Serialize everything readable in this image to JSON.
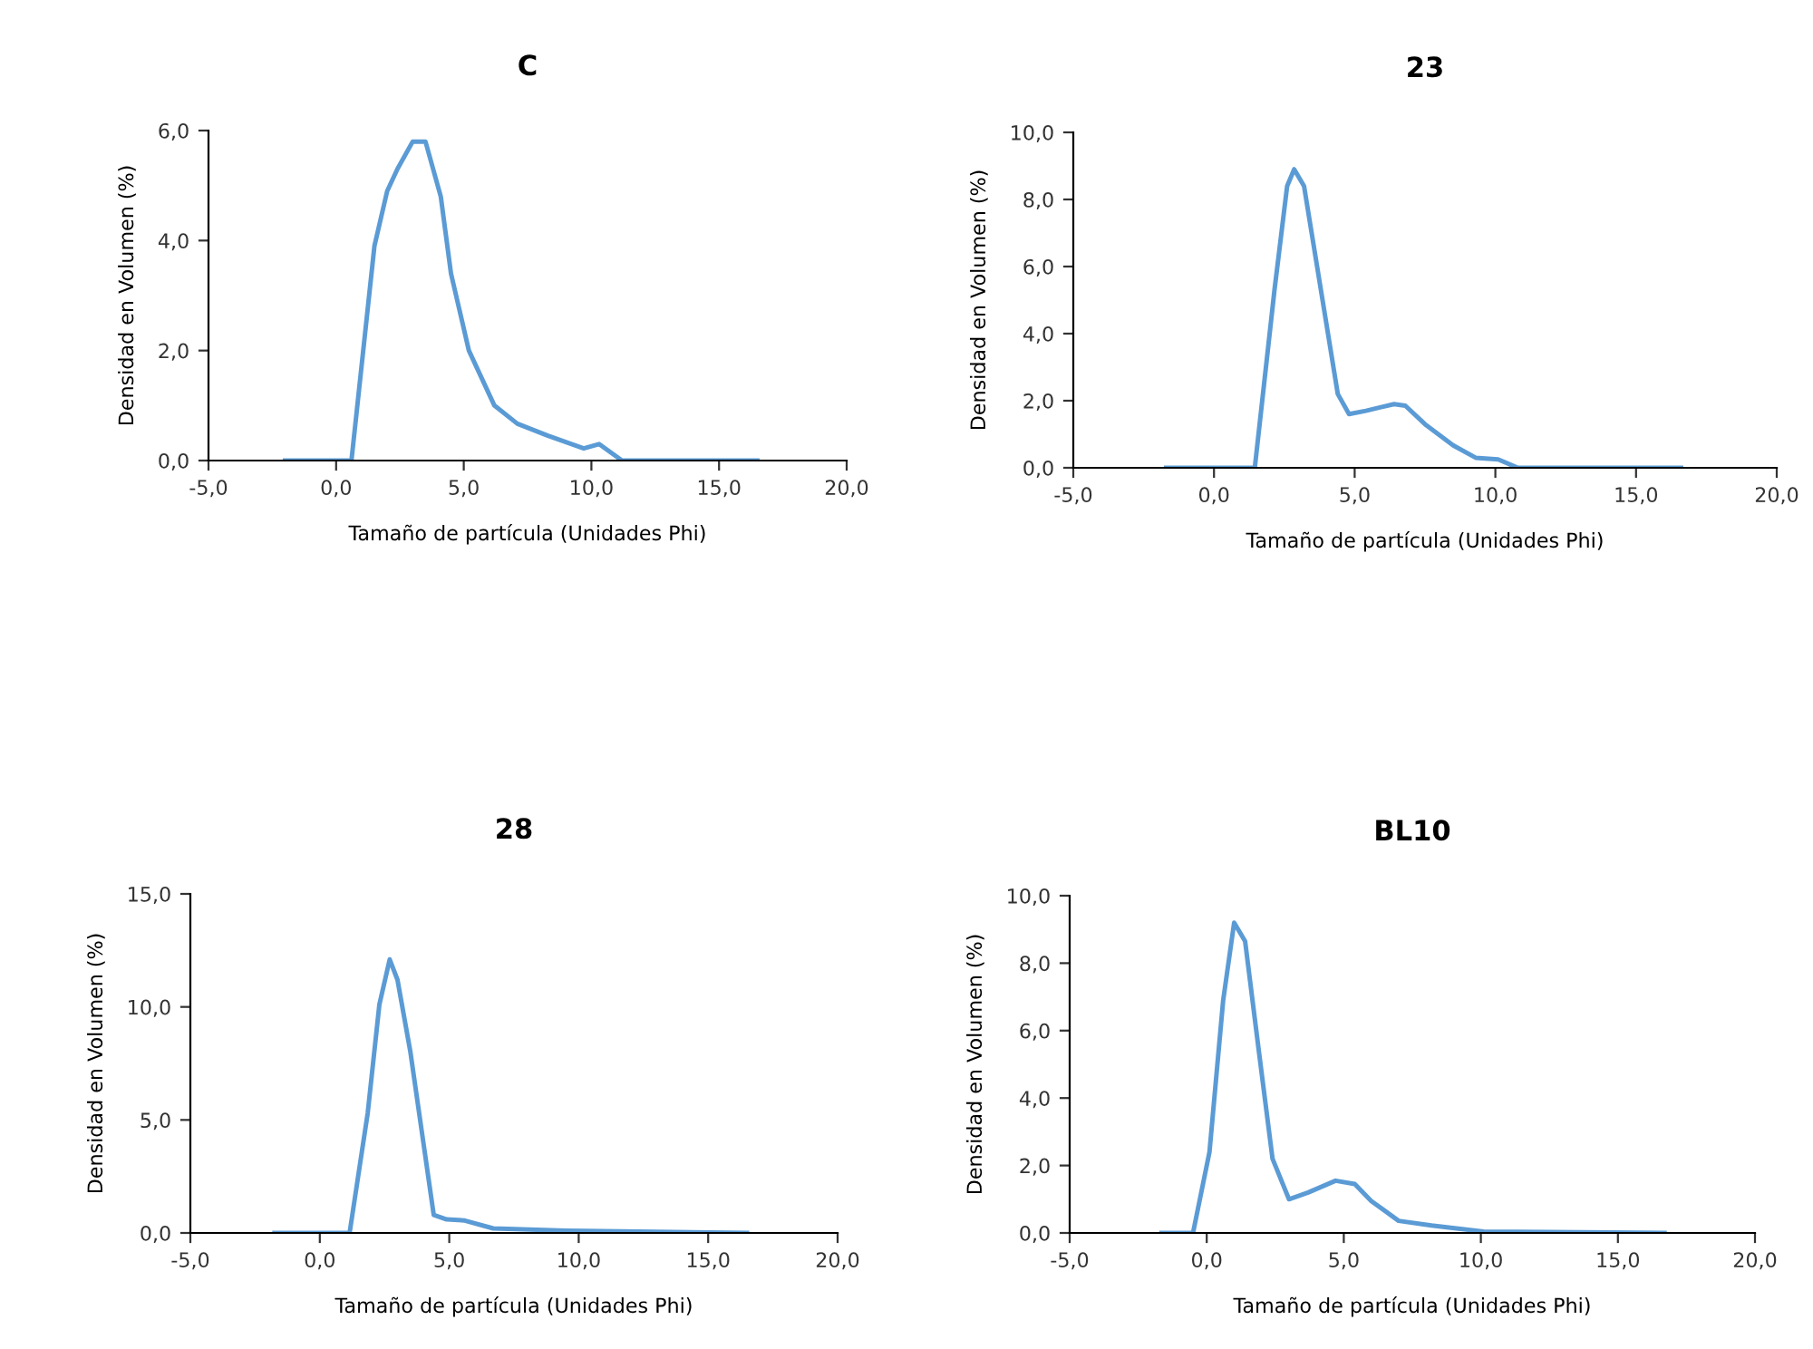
{
  "chart_data": [
    {
      "type": "line",
      "title": "C",
      "xlabel": "Tamaño de partícula (Unidades Phi)",
      "ylabel": "Densidad en Volumen (%)",
      "xlim": [
        -5,
        20
      ],
      "ylim": [
        0,
        6
      ],
      "xticks": [
        {
          "value": -5,
          "label": "-5,0"
        },
        {
          "value": 0,
          "label": "0,0"
        },
        {
          "value": 5,
          "label": "5,0"
        },
        {
          "value": 10,
          "label": "10,0"
        },
        {
          "value": 15,
          "label": "15,0"
        },
        {
          "value": 20,
          "label": "20,0"
        }
      ],
      "yticks": [
        {
          "value": 0,
          "label": "0,0"
        },
        {
          "value": 2,
          "label": "2,0"
        },
        {
          "value": 4,
          "label": "4,0"
        },
        {
          "value": 6,
          "label": "6,0"
        }
      ],
      "grid": false,
      "legend": false,
      "series": [
        {
          "color": "#5b9bd5",
          "x": [
            -2.0,
            0.6,
            1.5,
            2.0,
            2.4,
            3.0,
            3.5,
            4.1,
            4.5,
            5.2,
            6.2,
            7.1,
            8.3,
            9.7,
            10.3,
            11.2,
            16.5
          ],
          "values": [
            0,
            0,
            3.9,
            4.9,
            5.3,
            5.8,
            5.8,
            4.8,
            3.4,
            2.0,
            1.0,
            0.67,
            0.45,
            0.22,
            0.3,
            0,
            0
          ]
        }
      ]
    },
    {
      "type": "line",
      "title": "23",
      "xlabel": "Tamaño de partícula (Unidades Phi)",
      "ylabel": "Densidad en Volumen (%)",
      "xlim": [
        -5,
        20
      ],
      "ylim": [
        0,
        10
      ],
      "xticks": [
        {
          "value": -5,
          "label": "-5,0"
        },
        {
          "value": 0,
          "label": "0,0"
        },
        {
          "value": 5,
          "label": "5,0"
        },
        {
          "value": 10,
          "label": "10,0"
        },
        {
          "value": 15,
          "label": "15,0"
        },
        {
          "value": 20,
          "label": "20,0"
        }
      ],
      "yticks": [
        {
          "value": 0,
          "label": "0,0"
        },
        {
          "value": 2,
          "label": "2,0"
        },
        {
          "value": 4,
          "label": "4,0"
        },
        {
          "value": 6,
          "label": "6,0"
        },
        {
          "value": 8,
          "label": "8,0"
        },
        {
          "value": 10,
          "label": "10,0"
        }
      ],
      "grid": false,
      "legend": false,
      "series": [
        {
          "color": "#5b9bd5",
          "x": [
            -1.7,
            1.45,
            2.15,
            2.6,
            2.85,
            3.2,
            3.8,
            4.4,
            4.8,
            5.4,
            6.4,
            6.8,
            7.5,
            8.5,
            9.3,
            10.1,
            10.8,
            16.6
          ],
          "values": [
            0,
            0,
            5.3,
            8.4,
            8.9,
            8.4,
            5.3,
            2.2,
            1.6,
            1.7,
            1.9,
            1.85,
            1.3,
            0.67,
            0.3,
            0.25,
            0,
            0
          ]
        }
      ]
    },
    {
      "type": "line",
      "title": "28",
      "xlabel": "Tamaño de partícula (Unidades Phi)",
      "ylabel": "Densidad en Volumen (%)",
      "xlim": [
        -5,
        20
      ],
      "ylim": [
        0,
        15
      ],
      "xticks": [
        {
          "value": -5,
          "label": "-5,0"
        },
        {
          "value": 0,
          "label": "0,0"
        },
        {
          "value": 5,
          "label": "5,0"
        },
        {
          "value": 10,
          "label": "10,0"
        },
        {
          "value": 15,
          "label": "15,0"
        },
        {
          "value": 20,
          "label": "20,0"
        }
      ],
      "yticks": [
        {
          "value": 0,
          "label": "0,0"
        },
        {
          "value": 5,
          "label": "5,0"
        },
        {
          "value": 10,
          "label": "10,0"
        },
        {
          "value": 15,
          "label": "15,0"
        }
      ],
      "grid": false,
      "legend": false,
      "series": [
        {
          "color": "#5b9bd5",
          "x": [
            -1.75,
            1.15,
            1.85,
            2.3,
            2.7,
            3.0,
            3.5,
            4.0,
            4.4,
            4.9,
            5.6,
            6.7,
            9.5,
            16.5
          ],
          "values": [
            0,
            0,
            5.3,
            10.1,
            12.1,
            11.2,
            8.0,
            4.0,
            0.8,
            0.6,
            0.55,
            0.2,
            0.1,
            0
          ]
        }
      ]
    },
    {
      "type": "line",
      "title": "BL10",
      "xlabel": "Tamaño de partícula (Unidades Phi)",
      "ylabel": "Densidad en Volumen (%)",
      "xlim": [
        -5,
        20
      ],
      "ylim": [
        0,
        10
      ],
      "xticks": [
        {
          "value": -5,
          "label": "-5,0"
        },
        {
          "value": 0,
          "label": "0,0"
        },
        {
          "value": 5,
          "label": "5,0"
        },
        {
          "value": 10,
          "label": "10,0"
        },
        {
          "value": 15,
          "label": "15,0"
        },
        {
          "value": 20,
          "label": "20,0"
        }
      ],
      "yticks": [
        {
          "value": 0,
          "label": "0,0"
        },
        {
          "value": 2,
          "label": "2,0"
        },
        {
          "value": 4,
          "label": "4,0"
        },
        {
          "value": 6,
          "label": "6,0"
        },
        {
          "value": 8,
          "label": "8,0"
        },
        {
          "value": 10,
          "label": "10,0"
        }
      ],
      "grid": false,
      "legend": false,
      "series": [
        {
          "color": "#5b9bd5",
          "x": [
            -1.65,
            -0.5,
            0.1,
            0.6,
            1.0,
            1.4,
            1.9,
            2.4,
            3.0,
            3.7,
            4.7,
            5.4,
            6.0,
            7.0,
            8.2,
            10.1,
            16.7
          ],
          "values": [
            0,
            0,
            2.4,
            6.9,
            9.2,
            8.65,
            5.4,
            2.2,
            1.0,
            1.2,
            1.55,
            1.45,
            0.95,
            0.36,
            0.22,
            0.04,
            0
          ]
        }
      ]
    }
  ]
}
